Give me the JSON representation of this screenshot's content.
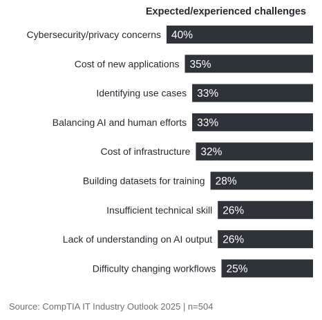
{
  "chart_data": {
    "type": "bar",
    "orientation": "horizontal",
    "title": "Expected/experienced challenges",
    "categories": [
      "Cybersecurity/privacy concerns",
      "Cost of new applications",
      "Identifying use cases",
      "Balancing AI and human efforts",
      "Cost of infrastructure",
      "Building datasets for training",
      "Insufficient technical skill",
      "Lack of understanding on AI output",
      "Difficulty changing workflows"
    ],
    "values": [
      40,
      35,
      33,
      33,
      32,
      28,
      26,
      26,
      25
    ],
    "value_labels": [
      "40%",
      "35%",
      "33%",
      "33%",
      "32%",
      "28%",
      "26%",
      "26%",
      "25%"
    ],
    "bar_color": "#2e3339",
    "label_color": "#ffffff",
    "xlim": [
      0,
      40
    ],
    "grid": false,
    "legend": "none"
  },
  "footer": {
    "source": "Source: CompTIA IT Industry Outlook 2025 | n=504"
  }
}
